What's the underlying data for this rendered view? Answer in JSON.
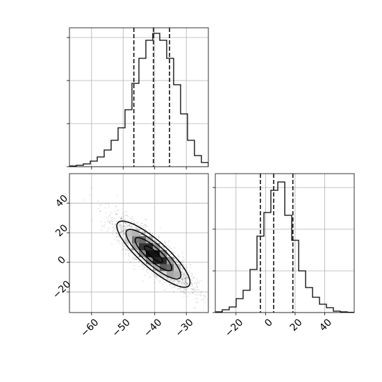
{
  "chart_data": [
    {
      "panel": "marginal-x",
      "type": "histogram",
      "xlim": [
        -67,
        -23
      ],
      "ylim": [
        0,
        1
      ],
      "grid": true,
      "edges": [
        -67,
        -64.8,
        -62.6,
        -60.4,
        -58.2,
        -56,
        -53.8,
        -51.6,
        -49.4,
        -47.2,
        -45,
        -42.8,
        -40.6,
        -38.4,
        -36.2,
        -34,
        -31.8,
        -29.6,
        -27.4,
        -25.2,
        -23
      ],
      "counts": [
        0.005,
        0.01,
        0.02,
        0.04,
        0.07,
        0.12,
        0.19,
        0.28,
        0.41,
        0.6,
        0.78,
        0.91,
        0.96,
        0.91,
        0.78,
        0.59,
        0.38,
        0.19,
        0.08,
        0.03
      ],
      "quantile_lines": [
        -46.6,
        -40.4,
        -35.3
      ],
      "yticks": [
        0.0,
        0.31,
        0.62,
        0.93
      ],
      "ytick_labels_visible": false
    },
    {
      "panel": "joint-2d",
      "type": "heatmap",
      "xlim": [
        -67,
        -23
      ],
      "ylim": [
        -34,
        60
      ],
      "grid": true,
      "xticks": [
        -60,
        -50,
        -40,
        -30
      ],
      "xtick_labels": [
        "−60",
        "−50",
        "−40",
        "−30"
      ],
      "yticks": [
        -20,
        0,
        20,
        40
      ],
      "ytick_labels": [
        "−20",
        "0",
        "20",
        "40"
      ],
      "correlation": -0.85,
      "mean": [
        -40.4,
        5.5
      ],
      "std": [
        5.8,
        11.2
      ],
      "contour_levels_sigma": [
        0.5,
        1.0,
        1.5,
        2.0
      ],
      "scatter_samples": 3000
    },
    {
      "panel": "marginal-y",
      "type": "histogram",
      "xlim": [
        -34,
        60
      ],
      "ylim": [
        0,
        1
      ],
      "grid": true,
      "edges": [
        -34,
        -29.3,
        -24.6,
        -19.9,
        -15.2,
        -10.5,
        -5.8,
        -1.1,
        3.6,
        8.3,
        13,
        17.7,
        22.4,
        27.1,
        31.8,
        36.5,
        41.2,
        45.9,
        50.6,
        55.3,
        60
      ],
      "counts": [
        0.005,
        0.02,
        0.04,
        0.1,
        0.16,
        0.31,
        0.55,
        0.72,
        0.88,
        0.94,
        0.7,
        0.52,
        0.3,
        0.18,
        0.11,
        0.06,
        0.035,
        0.01,
        0.005,
        0.002
      ],
      "quantile_lines": [
        -3.5,
        5.5,
        18.5
      ],
      "xticks": [
        -20,
        0,
        20,
        40
      ],
      "xtick_labels": [
        "−20",
        "0",
        "20",
        "40"
      ],
      "yticks": [
        0.0,
        0.3,
        0.6,
        0.9
      ],
      "ytick_labels_visible": false
    }
  ]
}
